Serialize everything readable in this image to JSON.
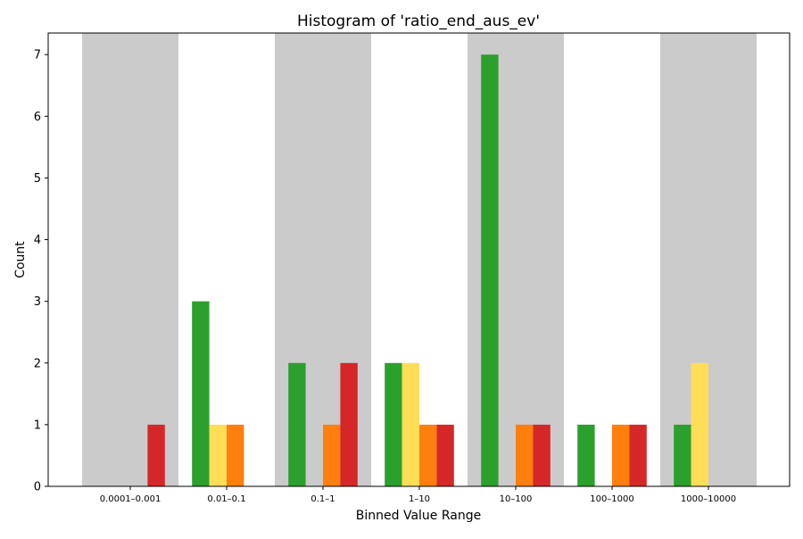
{
  "chart_data": {
    "type": "bar",
    "title": "Histogram of 'ratio_end_aus_ev'",
    "xlabel": "Binned Value Range",
    "ylabel": "Count",
    "ylim": [
      0,
      7.35
    ],
    "yticks": [
      0,
      1,
      2,
      3,
      4,
      5,
      6,
      7
    ],
    "grid": false,
    "legend": "none",
    "categories": [
      "0.0001–0.001",
      "0.01–0.1",
      "0.1–1",
      "1–10",
      "10–100",
      "100–1000",
      "1000–10000"
    ],
    "shaded_bins": [
      0,
      2,
      4,
      6
    ],
    "shade_color": "#cbcbcb",
    "series": [
      {
        "color": "#2ca02c",
        "values": [
          0,
          3,
          2,
          2,
          7,
          1,
          1
        ]
      },
      {
        "color": "#ffdd57",
        "values": [
          0,
          1,
          0,
          2,
          0,
          0,
          2
        ]
      },
      {
        "color": "#ff7f0e",
        "values": [
          0,
          1,
          1,
          1,
          1,
          1,
          0
        ]
      },
      {
        "color": "#d62728",
        "values": [
          1,
          0,
          2,
          1,
          1,
          1,
          0
        ]
      }
    ]
  }
}
